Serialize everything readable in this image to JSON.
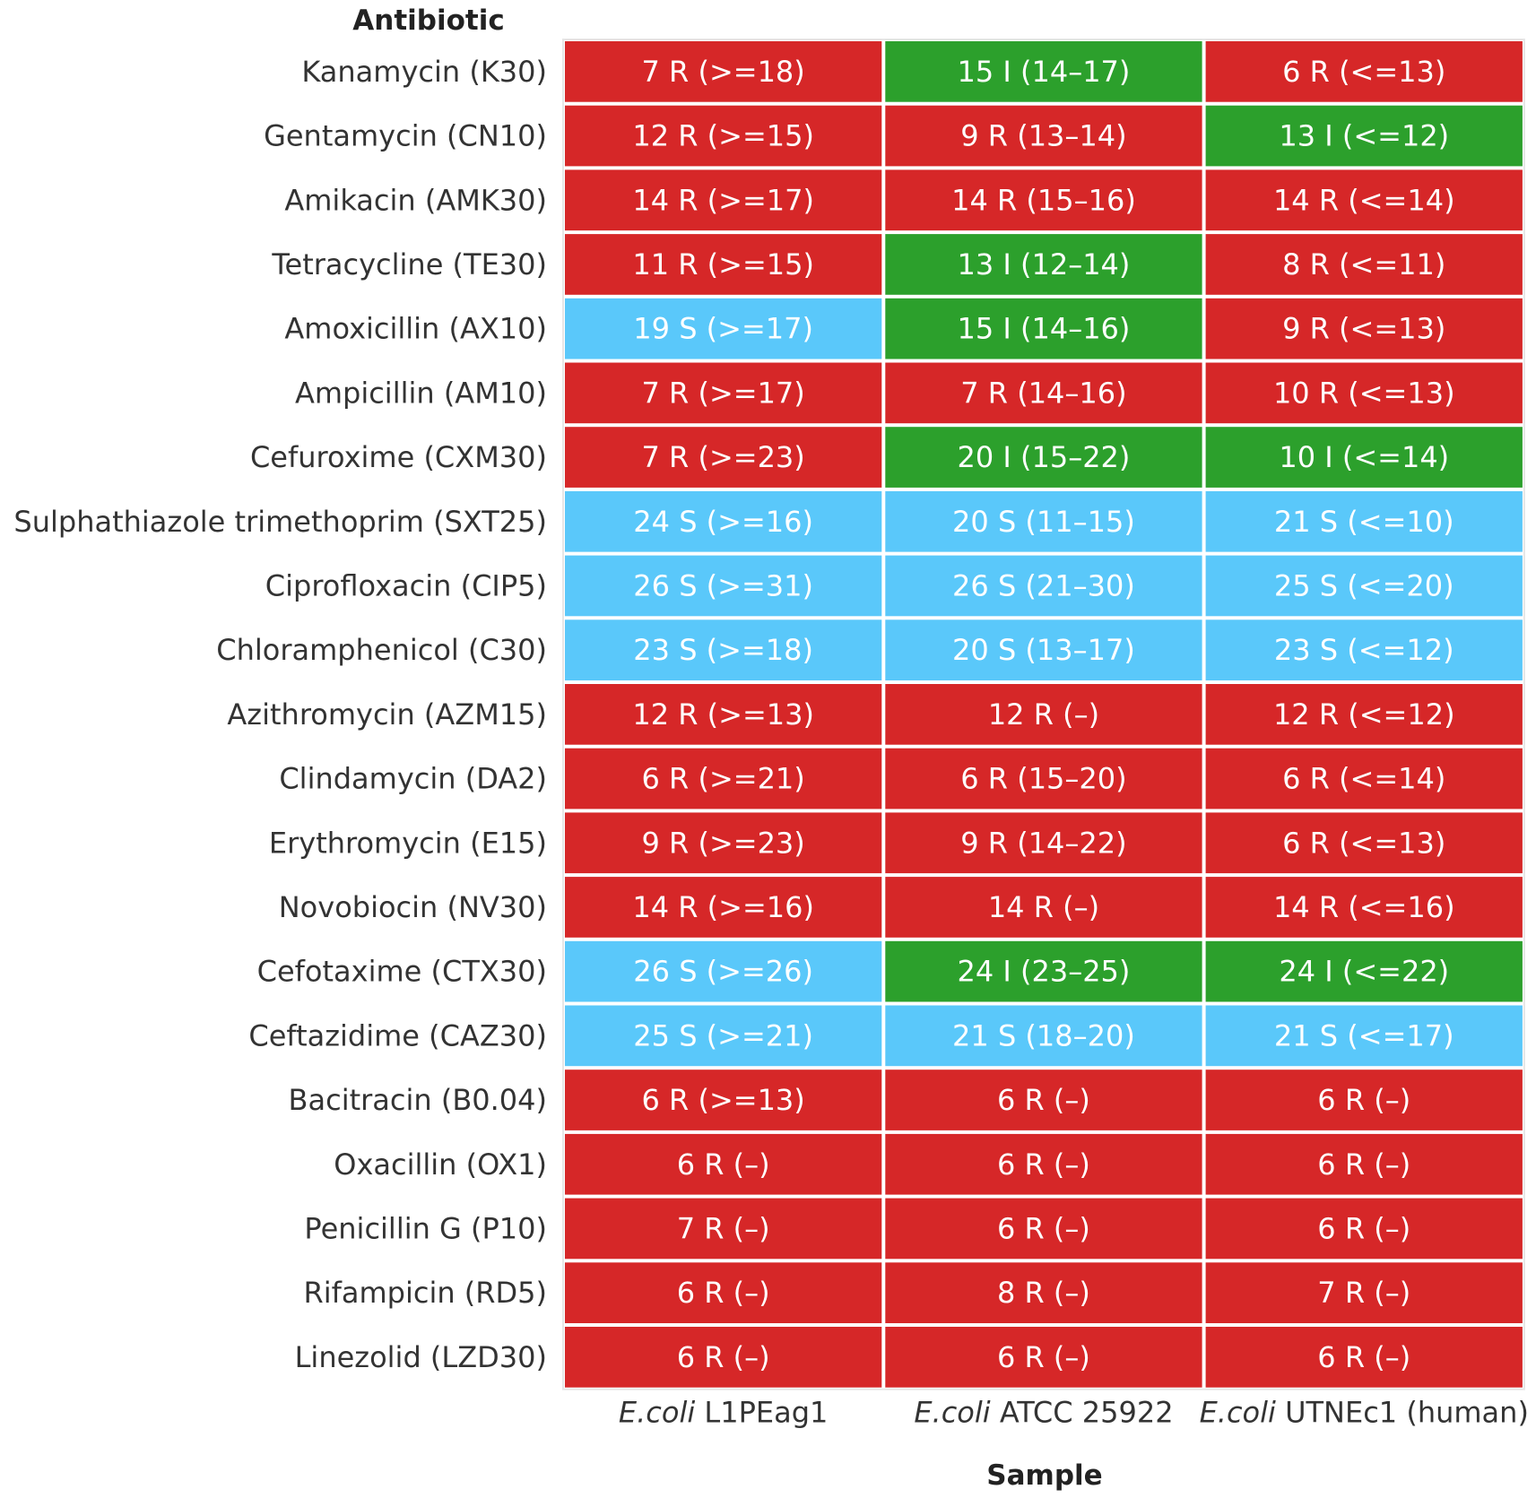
{
  "chart_data": {
    "type": "heatmap",
    "title": "",
    "ylabel": "Antibiotic",
    "xlabel": "Sample",
    "columns": [
      {
        "italic": "E.coli",
        "rest": " L1PEag1"
      },
      {
        "italic": "E.coli",
        "rest": " ATCC 25922"
      },
      {
        "italic": "E.coli",
        "rest": " UTNEc1 (human)"
      }
    ],
    "colors": {
      "R": "#d62728",
      "I": "#2ca02c",
      "S": "#5ac8fa"
    },
    "rows": [
      {
        "label": "Kanamycin (K30)",
        "cells": [
          {
            "text": "7 R (>=18)",
            "cat": "R"
          },
          {
            "text": "15 I (14–17)",
            "cat": "I"
          },
          {
            "text": "6 R (<=13)",
            "cat": "R"
          }
        ]
      },
      {
        "label": "Gentamycin (CN10)",
        "cells": [
          {
            "text": "12 R (>=15)",
            "cat": "R"
          },
          {
            "text": "9 R (13–14)",
            "cat": "R"
          },
          {
            "text": "13 I (<=12)",
            "cat": "I"
          }
        ]
      },
      {
        "label": "Amikacin (AMK30)",
        "cells": [
          {
            "text": "14 R (>=17)",
            "cat": "R"
          },
          {
            "text": "14 R (15–16)",
            "cat": "R"
          },
          {
            "text": "14 R (<=14)",
            "cat": "R"
          }
        ]
      },
      {
        "label": "Tetracycline (TE30)",
        "cells": [
          {
            "text": "11 R (>=15)",
            "cat": "R"
          },
          {
            "text": "13 I (12–14)",
            "cat": "I"
          },
          {
            "text": "8 R (<=11)",
            "cat": "R"
          }
        ]
      },
      {
        "label": "Amoxicillin (AX10)",
        "cells": [
          {
            "text": "19 S (>=17)",
            "cat": "S"
          },
          {
            "text": "15 I (14–16)",
            "cat": "I"
          },
          {
            "text": "9 R (<=13)",
            "cat": "R"
          }
        ]
      },
      {
        "label": "Ampicillin (AM10)",
        "cells": [
          {
            "text": "7 R (>=17)",
            "cat": "R"
          },
          {
            "text": "7 R (14–16)",
            "cat": "R"
          },
          {
            "text": "10 R (<=13)",
            "cat": "R"
          }
        ]
      },
      {
        "label": "Cefuroxime (CXM30)",
        "cells": [
          {
            "text": "7 R (>=23)",
            "cat": "R"
          },
          {
            "text": "20 I (15–22)",
            "cat": "I"
          },
          {
            "text": "10 I (<=14)",
            "cat": "I"
          }
        ]
      },
      {
        "label": "Sulphathiazole trimethoprim (SXT25)",
        "cells": [
          {
            "text": "24 S (>=16)",
            "cat": "S"
          },
          {
            "text": "20 S (11–15)",
            "cat": "S"
          },
          {
            "text": "21 S (<=10)",
            "cat": "S"
          }
        ]
      },
      {
        "label": "Ciprofloxacin (CIP5)",
        "cells": [
          {
            "text": "26 S (>=31)",
            "cat": "S"
          },
          {
            "text": "26 S (21–30)",
            "cat": "S"
          },
          {
            "text": "25 S (<=20)",
            "cat": "S"
          }
        ]
      },
      {
        "label": "Chloramphenicol (C30)",
        "cells": [
          {
            "text": "23 S (>=18)",
            "cat": "S"
          },
          {
            "text": "20 S (13–17)",
            "cat": "S"
          },
          {
            "text": "23 S (<=12)",
            "cat": "S"
          }
        ]
      },
      {
        "label": "Azithromycin (AZM15)",
        "cells": [
          {
            "text": "12 R (>=13)",
            "cat": "R"
          },
          {
            "text": "12 R (–)",
            "cat": "R"
          },
          {
            "text": "12 R (<=12)",
            "cat": "R"
          }
        ]
      },
      {
        "label": "Clindamycin (DA2)",
        "cells": [
          {
            "text": "6 R (>=21)",
            "cat": "R"
          },
          {
            "text": "6 R (15–20)",
            "cat": "R"
          },
          {
            "text": "6 R (<=14)",
            "cat": "R"
          }
        ]
      },
      {
        "label": "Erythromycin (E15)",
        "cells": [
          {
            "text": "9 R (>=23)",
            "cat": "R"
          },
          {
            "text": "9 R (14–22)",
            "cat": "R"
          },
          {
            "text": "6 R (<=13)",
            "cat": "R"
          }
        ]
      },
      {
        "label": "Novobiocin (NV30)",
        "cells": [
          {
            "text": "14 R (>=16)",
            "cat": "R"
          },
          {
            "text": "14 R (–)",
            "cat": "R"
          },
          {
            "text": "14 R (<=16)",
            "cat": "R"
          }
        ]
      },
      {
        "label": "Cefotaxime (CTX30)",
        "cells": [
          {
            "text": "26 S (>=26)",
            "cat": "S"
          },
          {
            "text": "24 I (23–25)",
            "cat": "I"
          },
          {
            "text": "24 I (<=22)",
            "cat": "I"
          }
        ]
      },
      {
        "label": "Ceftazidime (CAZ30)",
        "cells": [
          {
            "text": "25 S (>=21)",
            "cat": "S"
          },
          {
            "text": "21 S (18–20)",
            "cat": "S"
          },
          {
            "text": "21 S (<=17)",
            "cat": "S"
          }
        ]
      },
      {
        "label": "Bacitracin (B0.04)",
        "cells": [
          {
            "text": "6 R (>=13)",
            "cat": "R"
          },
          {
            "text": "6 R (–)",
            "cat": "R"
          },
          {
            "text": "6 R (–)",
            "cat": "R"
          }
        ]
      },
      {
        "label": "Oxacillin (OX1)",
        "cells": [
          {
            "text": "6 R (–)",
            "cat": "R"
          },
          {
            "text": "6 R (–)",
            "cat": "R"
          },
          {
            "text": "6 R (–)",
            "cat": "R"
          }
        ]
      },
      {
        "label": "Penicillin G (P10)",
        "cells": [
          {
            "text": "7 R (–)",
            "cat": "R"
          },
          {
            "text": "6 R (–)",
            "cat": "R"
          },
          {
            "text": "6 R (–)",
            "cat": "R"
          }
        ]
      },
      {
        "label": "Rifampicin (RD5)",
        "cells": [
          {
            "text": "6 R (–)",
            "cat": "R"
          },
          {
            "text": "8 R (–)",
            "cat": "R"
          },
          {
            "text": "7 R (–)",
            "cat": "R"
          }
        ]
      },
      {
        "label": "Linezolid (LZD30)",
        "cells": [
          {
            "text": "6 R (–)",
            "cat": "R"
          },
          {
            "text": "6 R (–)",
            "cat": "R"
          },
          {
            "text": "6 R (–)",
            "cat": "R"
          }
        ]
      }
    ]
  }
}
